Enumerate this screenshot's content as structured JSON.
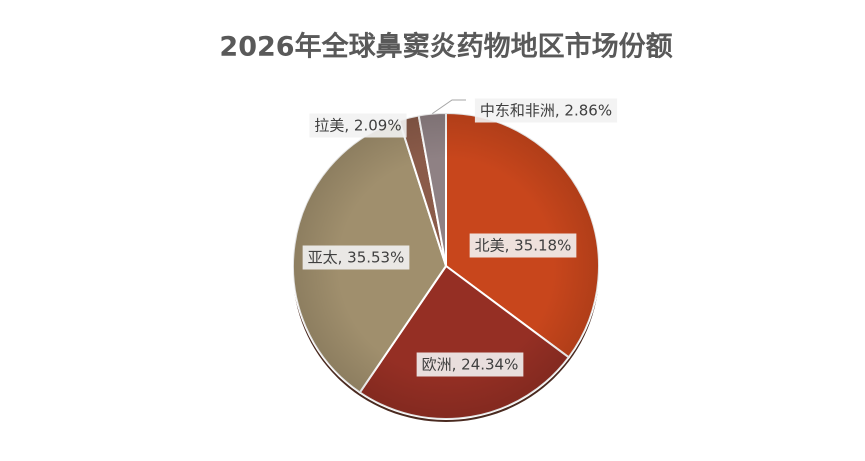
{
  "chart_data": {
    "type": "pie",
    "title": "2026年全球鼻窦炎药物地区市场份额",
    "categories": [
      "北美",
      "欧洲",
      "亚太",
      "拉美",
      "中东和非洲"
    ],
    "values": [
      35.18,
      24.34,
      35.53,
      2.09,
      2.86
    ],
    "value_labels": [
      "北美, 35.18%",
      "欧洲, 24.34%",
      "亚太, 35.53%",
      "拉美, 2.09%",
      "中东和非洲, 2.86%"
    ],
    "colors": [
      "#c8461c",
      "#952f24",
      "#a08f6d",
      "#8b5b49",
      "#8f8184"
    ]
  }
}
